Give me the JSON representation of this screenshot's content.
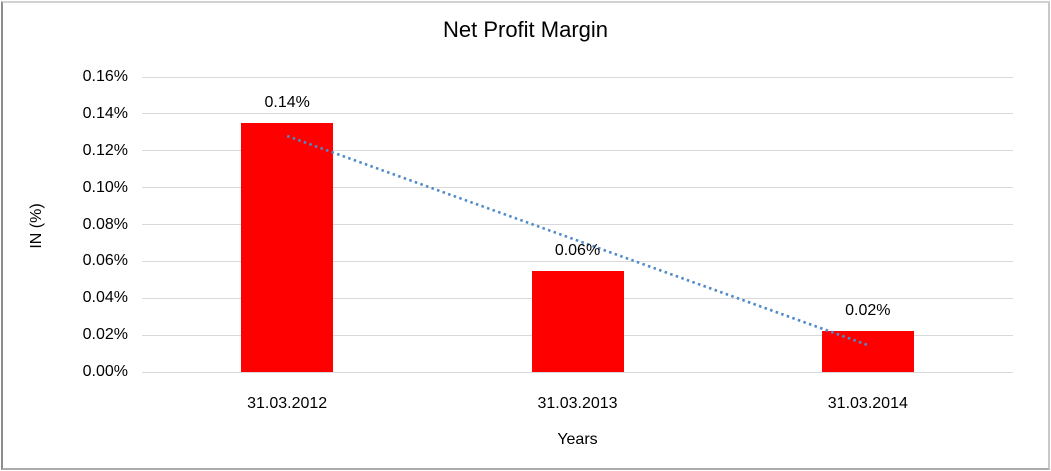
{
  "chart_data": {
    "type": "bar",
    "title": "Net Profit Margin",
    "xlabel": "Years",
    "ylabel": "IN (%)",
    "categories": [
      "31.03.2012",
      "31.03.2013",
      "31.03.2014"
    ],
    "values": [
      0.135,
      0.055,
      0.022
    ],
    "data_labels": [
      "0.14%",
      "0.06%",
      "0.02%"
    ],
    "ylim": [
      0,
      0.16
    ],
    "y_ticks": {
      "values": [
        0,
        0.02,
        0.04,
        0.06,
        0.08,
        0.1,
        0.12,
        0.14,
        0.16
      ],
      "labels": [
        "0.00%",
        "0.02%",
        "0.04%",
        "0.06%",
        "0.08%",
        "0.10%",
        "0.12%",
        "0.14%",
        "0.16%"
      ]
    },
    "grid": true,
    "legend": "none",
    "bar_color": "#ff0000",
    "gridline_color": "#d9d9d9",
    "trendline": {
      "type": "linear",
      "style": "dotted",
      "color": "#4e8ac8",
      "start": {
        "category_index": 0,
        "value": 0.128
      },
      "end": {
        "category_index": 2,
        "value": 0.0146
      }
    }
  }
}
